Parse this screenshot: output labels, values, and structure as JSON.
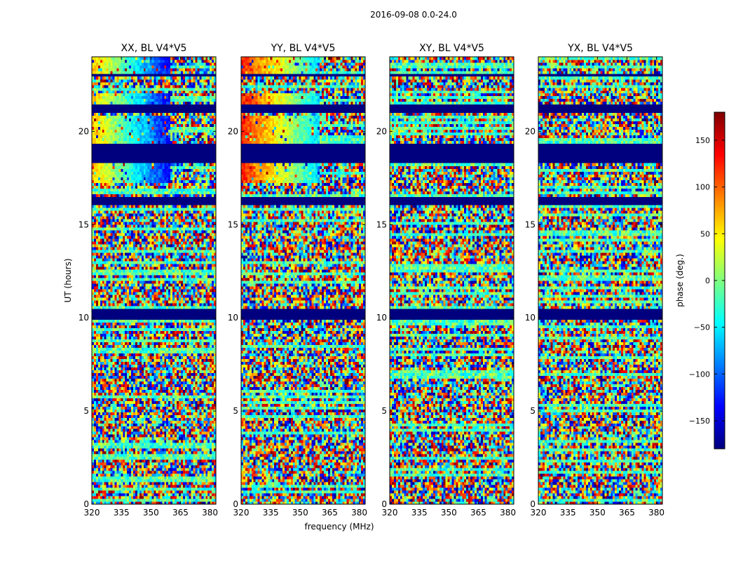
{
  "figure": {
    "suptitle": "2016-09-08 0.0-24.0",
    "xlabel": "frequency (MHz)",
    "ylabel": "UT (hours)",
    "colorbar_label": "phase (deg.)"
  },
  "chart_data": {
    "type": "heatmap",
    "colormap": "jet",
    "x_ticks": [
      "320",
      "335",
      "350",
      "365",
      "380"
    ],
    "y_ticks": [
      "0",
      "5",
      "10",
      "15",
      "20"
    ],
    "xlim": [
      320,
      383
    ],
    "ylim": [
      0,
      24
    ],
    "clim": [
      -180,
      180
    ],
    "colorbar_ticks": [
      "−150",
      "−100",
      "−50",
      "0",
      "50",
      "100",
      "150"
    ],
    "colorbar_values": [
      -150,
      -100,
      -50,
      0,
      50,
      100,
      150
    ],
    "panels": [
      {
        "title": "XX, BL V4*V5"
      },
      {
        "title": "YY, BL V4*V5"
      },
      {
        "title": "XY, BL V4*V5"
      },
      {
        "title": "YX, BL V4*V5"
      }
    ],
    "flagged_ut_ranges": [
      [
        9.95,
        10.5
      ],
      [
        16.1,
        16.55
      ],
      [
        18.3,
        19.3
      ],
      [
        21.0,
        21.4
      ],
      [
        22.9,
        23.1
      ]
    ],
    "coherent_ut_ranges": [
      [
        17.2,
        18.3
      ],
      [
        19.3,
        20.9
      ],
      [
        21.4,
        22.0
      ],
      [
        23.1,
        24.0
      ]
    ]
  }
}
